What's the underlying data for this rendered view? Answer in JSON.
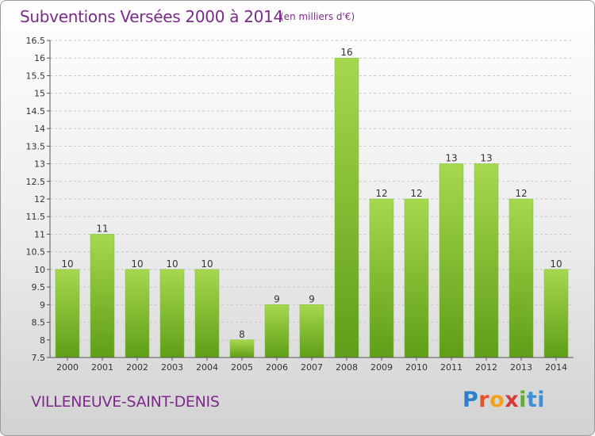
{
  "chart_data": {
    "type": "bar",
    "title": "Subventions Versées 2000 à 2014",
    "subtitle": "(en milliers d'€)",
    "categories": [
      "2000",
      "2001",
      "2002",
      "2003",
      "2004",
      "2005",
      "2006",
      "2007",
      "2008",
      "2009",
      "2010",
      "2011",
      "2012",
      "2013",
      "2014"
    ],
    "values": [
      10,
      11,
      10,
      10,
      10,
      8,
      9,
      9,
      16,
      12,
      12,
      13,
      13,
      12,
      10
    ],
    "value_labels": [
      "10",
      "11",
      "10",
      "10",
      "10",
      "8",
      "9",
      "9",
      "16",
      "12",
      "12",
      "13",
      "13",
      "12",
      "10"
    ],
    "ylim": [
      7.5,
      16.5
    ],
    "yticks": [
      7.5,
      8,
      8.5,
      9,
      9.5,
      10,
      10.5,
      11,
      11.5,
      12,
      12.5,
      13,
      13.5,
      14,
      14.5,
      15,
      15.5,
      16,
      16.5
    ],
    "ytick_labels": [
      "7.5",
      "8",
      "8.5",
      "9",
      "9.5",
      "10",
      "10.5",
      "11",
      "11.5",
      "12",
      "12.5",
      "13",
      "13.5",
      "14",
      "14.5",
      "15",
      "15.5",
      "16",
      "16.5"
    ],
    "xlabel": "",
    "ylabel": "",
    "grid": true,
    "legend": "none",
    "colors": {
      "bar_top": "#a6d84e",
      "bar_bottom": "#5f9e18",
      "grid": "#c8c8c8",
      "text_accent": "#7c2a8a"
    }
  },
  "footer": {
    "commune": "VILLENEUVE-SAINT-DENIS",
    "logo_letters": [
      "P",
      "r",
      "o",
      "x",
      "i",
      "t",
      "i"
    ]
  }
}
